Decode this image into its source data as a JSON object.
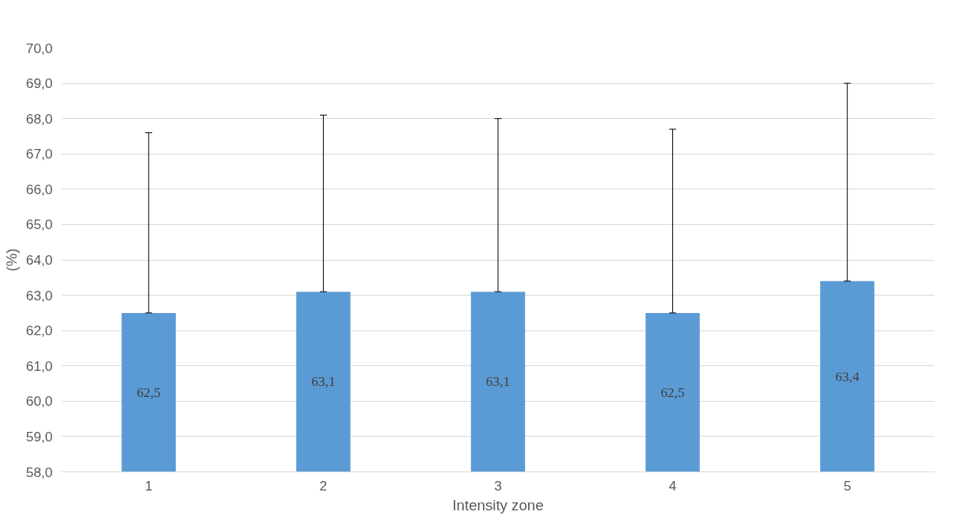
{
  "chart_data": {
    "type": "bar",
    "xlabel": "Intensity zone",
    "ylabel": "(%)",
    "categories": [
      "1",
      "2",
      "3",
      "4",
      "5"
    ],
    "values": [
      62.5,
      63.1,
      63.1,
      62.5,
      63.4
    ],
    "value_labels": [
      "62,5",
      "63,1",
      "63,1",
      "62,5",
      "63,4"
    ],
    "errors": [
      [
        62.5,
        67.6
      ],
      [
        63.1,
        68.1
      ],
      [
        63.1,
        68.0
      ],
      [
        62.5,
        67.7
      ],
      [
        63.4,
        69.0
      ]
    ],
    "color": "#5b9bd5",
    "ylim": [
      58,
      70
    ],
    "yticks": [
      {
        "value": 58,
        "label": "58,0"
      },
      {
        "value": 59,
        "label": "59,0"
      },
      {
        "value": 60,
        "label": "60,0"
      },
      {
        "value": 61,
        "label": "61,0"
      },
      {
        "value": 62,
        "label": "62,0"
      },
      {
        "value": 63,
        "label": "63,0"
      },
      {
        "value": 64,
        "label": "64,0"
      },
      {
        "value": 65,
        "label": "65,0"
      },
      {
        "value": 66,
        "label": "66,0"
      },
      {
        "value": 67,
        "label": "67,0"
      },
      {
        "value": 68,
        "label": "68,0"
      },
      {
        "value": 69,
        "label": "69,0"
      },
      {
        "value": 70,
        "label": "70,0"
      }
    ],
    "grid": "y"
  }
}
